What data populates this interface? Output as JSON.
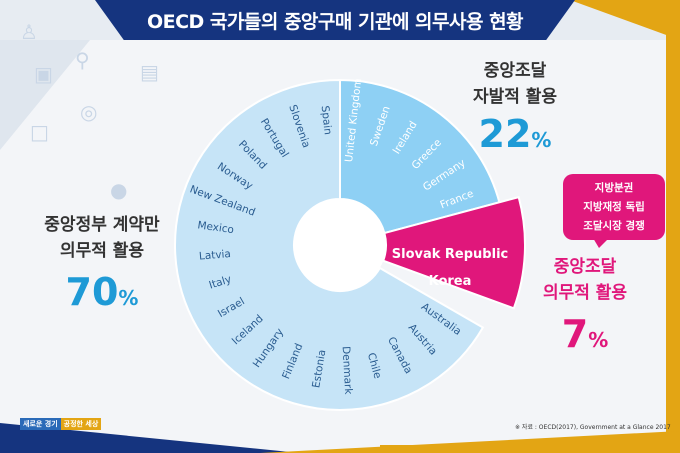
{
  "title": "OECD 국가들의 중앙구매 기관에 의무사용 현황",
  "labels": {
    "gov_line1": "중앙정부 계약만",
    "gov_line2": "의무적 활용",
    "gov_pct": "70",
    "auto_line1": "중앙조달",
    "auto_line2": "자발적 활용",
    "auto_pct": "22",
    "man_line1": "중앙조달",
    "man_line2": "의무적 활용",
    "man_pct": "7",
    "pct_sign": "%"
  },
  "bubble": {
    "line1": "지방분권",
    "line2": "지방재정 독립",
    "line3": "조달시장 경쟁"
  },
  "source": "※ 자료 : OECD(2017), Government at a Glance 2017",
  "logo": {
    "part1": "새로운 경기",
    "part2": "공정한 세상"
  },
  "chart_data": {
    "type": "pie",
    "title": "OECD 국가들의 중앙구매 기관에 의무사용 현황",
    "series": [
      {
        "name": "중앙정부 계약만 의무적 활용",
        "value": 70,
        "color": "#c6e4f7",
        "countries": [
          "Australia",
          "Austria",
          "Canada",
          "Chile",
          "Denmark",
          "Estonia",
          "Finland",
          "Hungary",
          "Iceland",
          "Israel",
          "Italy",
          "Latvia",
          "Mexico",
          "New Zealand",
          "Norway",
          "Poland",
          "Portugal",
          "Slovenia",
          "Spain"
        ]
      },
      {
        "name": "중앙조달 자발적 활용",
        "value": 22,
        "color": "#8ed0f4",
        "countries": [
          "United Kingdom",
          "Sweden",
          "Ireland",
          "Greece",
          "Germany",
          "France"
        ]
      },
      {
        "name": "중앙조달 의무적 활용",
        "value": 7,
        "color": "#e0177b",
        "countries": [
          "Slovak Republic",
          "Korea"
        ]
      }
    ]
  }
}
